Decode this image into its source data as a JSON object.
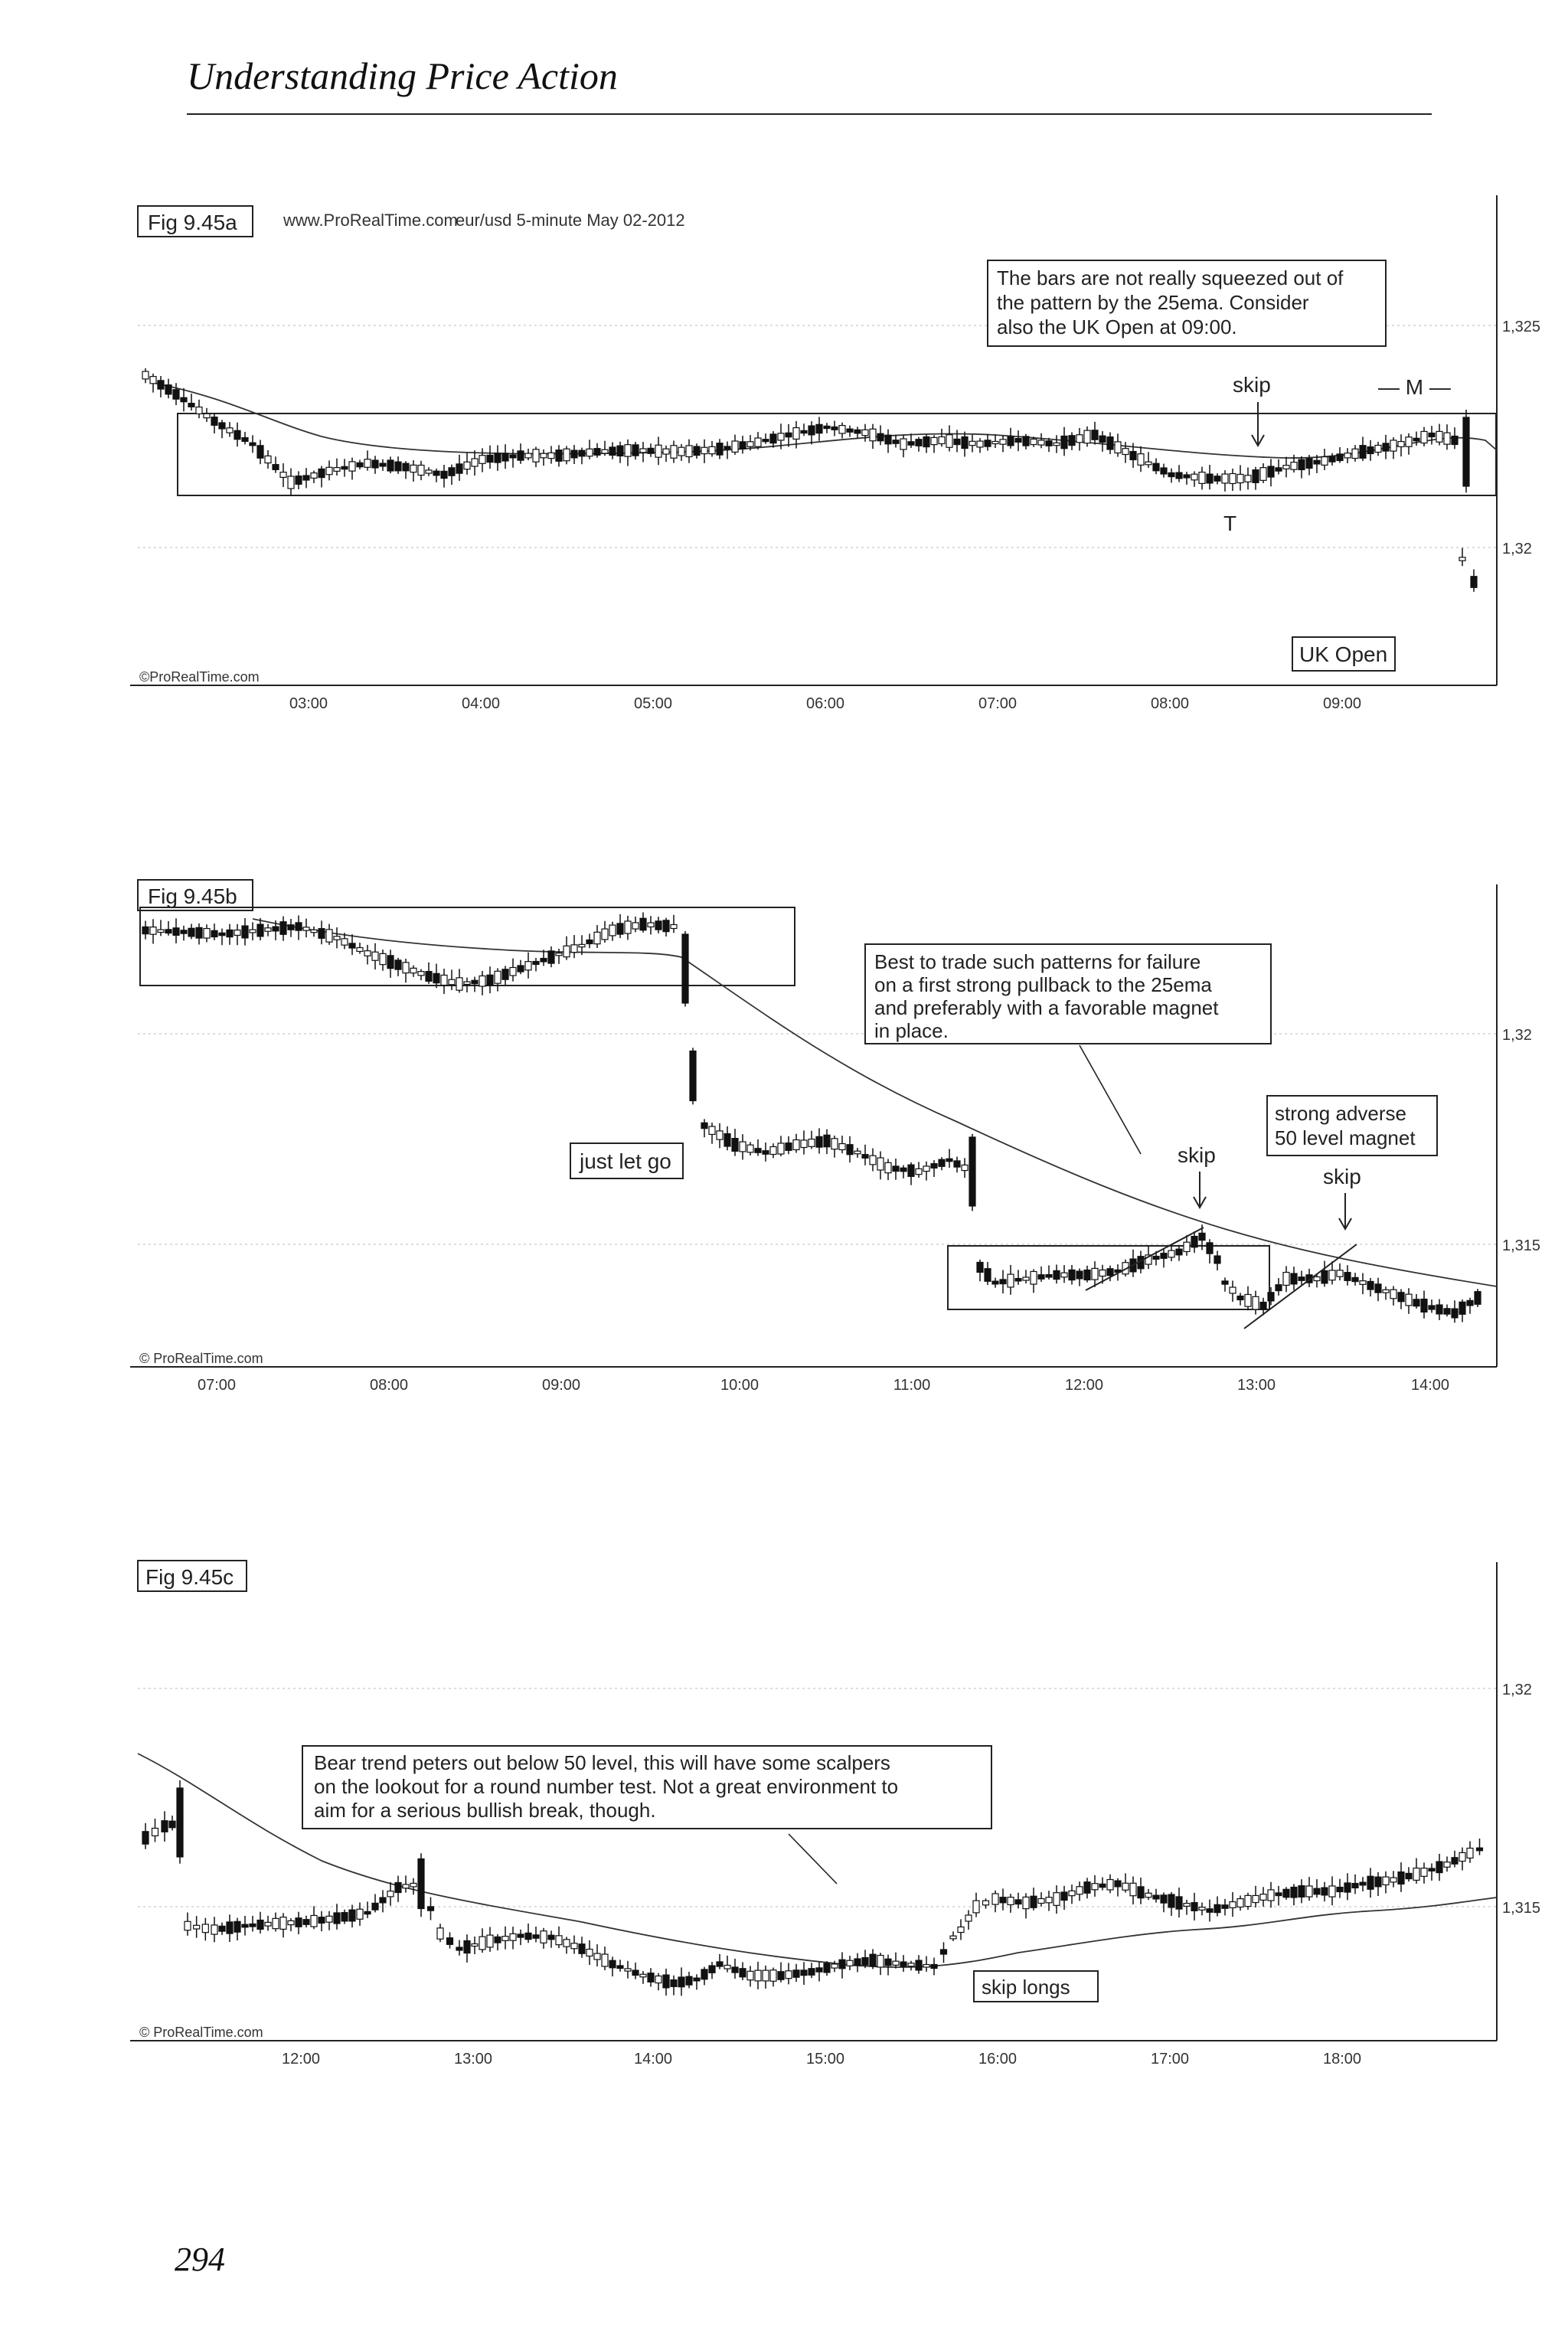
{
  "running_head": "Understanding Price Action",
  "page_number": "294",
  "chart_data": [
    {
      "type": "candlestick",
      "figure_label": "Fig 9.45a",
      "source": "www.ProRealTime.com",
      "subtitle": "eur/usd 5-minute May 02-2012",
      "watermark": "©ProRealTime.com",
      "x_ticks": [
        "03:00",
        "04:00",
        "05:00",
        "06:00",
        "07:00",
        "08:00",
        "09:00"
      ],
      "y_ticks": [
        "1,325",
        "1,32"
      ],
      "annotations": {
        "note": [
          "The bars are not really squeezed out of",
          "the pattern by the 25ema. Consider",
          "also the UK Open at 09:00."
        ],
        "skip": "skip",
        "m": "— M —",
        "t": "T",
        "uk_open": "UK Open"
      },
      "indicators": [
        "25ema"
      ]
    },
    {
      "type": "candlestick",
      "figure_label": "Fig 9.45b",
      "watermark": "© ProRealTime.com",
      "x_ticks": [
        "07:00",
        "08:00",
        "09:00",
        "10:00",
        "11:00",
        "12:00",
        "13:00",
        "14:00"
      ],
      "y_ticks": [
        "1,32",
        "1,315"
      ],
      "annotations": {
        "note": [
          "Best to trade such patterns for failure",
          "on a first strong pullback to the 25ema",
          "and preferably with a favorable magnet",
          "in place."
        ],
        "just_let_go": "just let go",
        "skip1": "skip",
        "skip2": "skip",
        "magnet": [
          "strong adverse",
          "50 level magnet"
        ]
      },
      "indicators": [
        "25ema"
      ]
    },
    {
      "type": "candlestick",
      "figure_label": "Fig 9.45c",
      "watermark": "© ProRealTime.com",
      "x_ticks": [
        "12:00",
        "13:00",
        "14:00",
        "15:00",
        "16:00",
        "17:00",
        "18:00"
      ],
      "y_ticks": [
        "1,32",
        "1,315"
      ],
      "annotations": {
        "note": [
          "Bear trend peters out below 50 level, this will have some scalpers",
          "on the lookout for a round number test. Not a great environment to",
          "aim for a serious bullish break, though."
        ],
        "skip_longs": "skip longs"
      },
      "indicators": [
        "25ema"
      ]
    }
  ]
}
